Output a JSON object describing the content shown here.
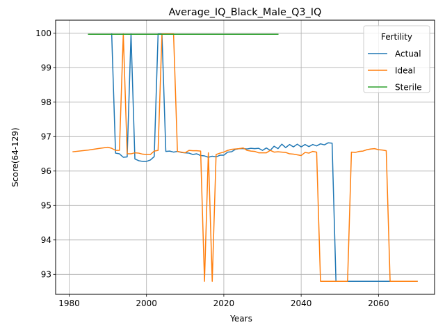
{
  "chart_data": {
    "type": "line",
    "title": "Average_IQ_Black_Male_Q3_IQ",
    "xlabel": "Years",
    "ylabel": "Score(64-129)",
    "xlim": [
      1976.5,
      2074.5
    ],
    "ylim": [
      92.42,
      100.38
    ],
    "xticks": [
      1980,
      2000,
      2020,
      2040,
      2060
    ],
    "yticks": [
      93,
      94,
      95,
      96,
      97,
      98,
      99,
      100
    ],
    "grid": true,
    "legend": {
      "title": "Fertility",
      "position": "top-right"
    },
    "series": [
      {
        "name": "Actual",
        "color": "#1f77b4",
        "points": [
          [
            1991,
            99.98
          ],
          [
            1992,
            96.52
          ],
          [
            1993,
            96.5
          ],
          [
            1994,
            96.4
          ],
          [
            1995,
            96.41
          ],
          [
            1996,
            99.98
          ],
          [
            1997,
            96.35
          ],
          [
            1998,
            96.3
          ],
          [
            1999,
            96.28
          ],
          [
            2000,
            96.28
          ],
          [
            2001,
            96.32
          ],
          [
            2002,
            96.42
          ],
          [
            2003,
            99.98
          ],
          [
            2004,
            99.98
          ],
          [
            2005,
            96.57
          ],
          [
            2006,
            96.58
          ],
          [
            2007,
            96.55
          ],
          [
            2008,
            96.57
          ],
          [
            2009,
            96.54
          ],
          [
            2010,
            96.53
          ],
          [
            2011,
            96.52
          ],
          [
            2012,
            96.48
          ],
          [
            2013,
            96.5
          ],
          [
            2014,
            96.45
          ],
          [
            2015,
            96.44
          ],
          [
            2016,
            96.4
          ],
          [
            2017,
            96.43
          ],
          [
            2018,
            96.41
          ],
          [
            2019,
            96.46
          ],
          [
            2020,
            96.46
          ],
          [
            2021,
            96.55
          ],
          [
            2022,
            96.56
          ],
          [
            2023,
            96.63
          ],
          [
            2024,
            96.65
          ],
          [
            2025,
            96.65
          ],
          [
            2026,
            96.64
          ],
          [
            2027,
            96.66
          ],
          [
            2028,
            96.65
          ],
          [
            2029,
            96.66
          ],
          [
            2030,
            96.6
          ],
          [
            2031,
            96.67
          ],
          [
            2032,
            96.6
          ],
          [
            2033,
            96.72
          ],
          [
            2034,
            96.65
          ],
          [
            2035,
            96.78
          ],
          [
            2036,
            96.68
          ],
          [
            2037,
            96.77
          ],
          [
            2038,
            96.7
          ],
          [
            2039,
            96.78
          ],
          [
            2040,
            96.7
          ],
          [
            2041,
            96.77
          ],
          [
            2042,
            96.71
          ],
          [
            2043,
            96.77
          ],
          [
            2044,
            96.73
          ],
          [
            2045,
            96.79
          ],
          [
            2046,
            96.76
          ],
          [
            2047,
            96.82
          ],
          [
            2048,
            96.81
          ],
          [
            2049,
            92.8
          ],
          [
            2050,
            92.8
          ],
          [
            2055,
            92.8
          ],
          [
            2060,
            92.8
          ],
          [
            2065,
            92.8
          ],
          [
            2070,
            92.8
          ]
        ]
      },
      {
        "name": "Ideal",
        "color": "#ff7f0e",
        "points": [
          [
            1981,
            96.56
          ],
          [
            1985,
            96.61
          ],
          [
            1988,
            96.66
          ],
          [
            1990,
            96.69
          ],
          [
            1991,
            96.66
          ],
          [
            1992,
            96.6
          ],
          [
            1993,
            96.6
          ],
          [
            1994,
            99.98
          ],
          [
            1995,
            96.5
          ],
          [
            1996,
            96.5
          ],
          [
            1997,
            96.53
          ],
          [
            1998,
            96.52
          ],
          [
            1999,
            96.49
          ],
          [
            2000,
            96.48
          ],
          [
            2001,
            96.48
          ],
          [
            2002,
            96.58
          ],
          [
            2003,
            96.6
          ],
          [
            2004,
            99.98
          ],
          [
            2005,
            99.98
          ],
          [
            2006,
            99.98
          ],
          [
            2007,
            99.98
          ],
          [
            2008,
            96.57
          ],
          [
            2009,
            96.55
          ],
          [
            2010,
            96.53
          ],
          [
            2011,
            96.6
          ],
          [
            2012,
            96.59
          ],
          [
            2013,
            96.59
          ],
          [
            2014,
            96.58
          ],
          [
            2015,
            92.8
          ],
          [
            2016,
            96.53
          ],
          [
            2017,
            92.8
          ],
          [
            2018,
            96.48
          ],
          [
            2019,
            96.52
          ],
          [
            2020,
            96.55
          ],
          [
            2021,
            96.6
          ],
          [
            2022,
            96.63
          ],
          [
            2023,
            96.64
          ],
          [
            2024,
            96.65
          ],
          [
            2025,
            96.67
          ],
          [
            2026,
            96.6
          ],
          [
            2027,
            96.58
          ],
          [
            2028,
            96.57
          ],
          [
            2029,
            96.53
          ],
          [
            2030,
            96.53
          ],
          [
            2031,
            96.53
          ],
          [
            2032,
            96.6
          ],
          [
            2033,
            96.55
          ],
          [
            2034,
            96.56
          ],
          [
            2035,
            96.55
          ],
          [
            2036,
            96.54
          ],
          [
            2037,
            96.5
          ],
          [
            2038,
            96.49
          ],
          [
            2039,
            96.47
          ],
          [
            2040,
            96.45
          ],
          [
            2041,
            96.54
          ],
          [
            2042,
            96.52
          ],
          [
            2043,
            96.57
          ],
          [
            2044,
            96.55
          ],
          [
            2045,
            92.8
          ],
          [
            2050,
            92.8
          ],
          [
            2052,
            92.8
          ],
          [
            2053,
            96.55
          ],
          [
            2054,
            96.54
          ],
          [
            2055,
            96.57
          ],
          [
            2056,
            96.58
          ],
          [
            2057,
            96.62
          ],
          [
            2058,
            96.64
          ],
          [
            2059,
            96.65
          ],
          [
            2060,
            96.62
          ],
          [
            2061,
            96.61
          ],
          [
            2062,
            96.59
          ],
          [
            2063,
            92.8
          ],
          [
            2065,
            92.8
          ],
          [
            2070,
            92.8
          ]
        ]
      },
      {
        "name": "Sterile",
        "color": "#2ca02c",
        "points": [
          [
            1985,
            99.97
          ],
          [
            2034,
            99.97
          ]
        ]
      }
    ]
  }
}
